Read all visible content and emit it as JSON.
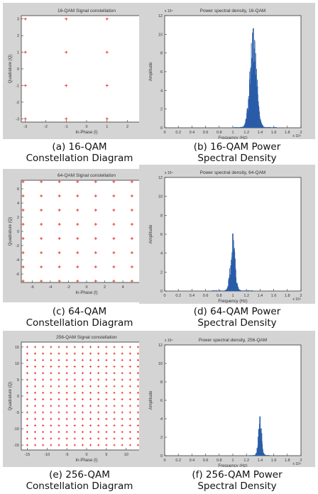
{
  "captions": {
    "a": [
      "(a) 16-QAM",
      "Constellation Diagram"
    ],
    "b": [
      "(b) 16-QAM Power",
      "Spectral Density"
    ],
    "c": [
      "(c) 64-QAM",
      "Constellation Diagram"
    ],
    "d": [
      "(d) 64-QAM Power",
      "Spectral Density"
    ],
    "e": [
      "(e) 256-QAM",
      "Constellation Diagram"
    ],
    "f": [
      "(f) 256-QAM Power",
      "Spectral Density"
    ]
  },
  "chart_data": [
    {
      "id": "a",
      "type": "scatter",
      "title": "16-QAM Signal constellation",
      "xlabel": "In-Phase (I)",
      "ylabel": "Quadrature (Q)",
      "xlim": [
        -3.2,
        3.2
      ],
      "ylim": [
        -3.2,
        3.2
      ],
      "xticks": [
        -3,
        -2,
        -1,
        0,
        1,
        2,
        3
      ],
      "yticks": [
        -3,
        -2,
        -1,
        0,
        1,
        2,
        3
      ],
      "levels": [
        -3,
        -1,
        1,
        3
      ],
      "marker_color": "#e8322a"
    },
    {
      "id": "b",
      "type": "bar",
      "title": "Power spectral density, 16-QAM",
      "xlabel": "Frequency (Hz)",
      "ylabel": "Amplitude",
      "x_multiplier": "x 10⁴",
      "y_multiplier": "x 10⁴",
      "xlim": [
        0,
        2
      ],
      "ylim": [
        0,
        12
      ],
      "xticks": [
        0,
        0.2,
        0.4,
        0.6,
        0.8,
        1,
        1.2,
        1.4,
        1.6,
        1.8,
        2
      ],
      "yticks": [
        0,
        2,
        4,
        6,
        8,
        10,
        12
      ],
      "center": 1.3,
      "peak": 10.6,
      "width": 0.05,
      "noise_range": [
        1.0,
        1.65
      ],
      "bar_color": "#2a5da8"
    },
    {
      "id": "c",
      "type": "scatter",
      "title": "64-QAM Signal constellation",
      "xlabel": "In-Phase (I)",
      "ylabel": "Quadrature (Q)",
      "xlim": [
        -7.2,
        7.2
      ],
      "ylim": [
        -7.2,
        7.2
      ],
      "xticks": [
        -6,
        -4,
        -2,
        0,
        2,
        4,
        6
      ],
      "yticks": [
        -6,
        -4,
        -2,
        0,
        2,
        4,
        6
      ],
      "levels": [
        -7,
        -5,
        -3,
        -1,
        1,
        3,
        5,
        7
      ],
      "marker_color": "#e8322a"
    },
    {
      "id": "d",
      "type": "bar",
      "title": "Power spectral density, 64-QAM",
      "xlabel": "Frequency (Hz)",
      "ylabel": "Amplitude",
      "x_multiplier": "x 10⁴",
      "y_multiplier": "x 10⁴",
      "xlim": [
        0,
        2
      ],
      "ylim": [
        0,
        12
      ],
      "xticks": [
        0,
        0.2,
        0.4,
        0.6,
        0.8,
        1,
        1.2,
        1.4,
        1.6,
        1.8,
        2
      ],
      "yticks": [
        0,
        2,
        4,
        6,
        8,
        10,
        12
      ],
      "center": 1.0,
      "peak": 6.0,
      "width": 0.035,
      "noise_range": [
        0.7,
        1.3
      ],
      "bar_color": "#2a5da8"
    },
    {
      "id": "e",
      "type": "scatter",
      "title": "256-QAM Signal constellation",
      "xlabel": "In-Phase (I)",
      "ylabel": "Quadrature (Q)",
      "xlim": [
        -16.5,
        16.5
      ],
      "ylim": [
        -16.5,
        16.5
      ],
      "xticks": [
        -15,
        -10,
        -5,
        0,
        5,
        10,
        15
      ],
      "yticks": [
        -15,
        -10,
        -5,
        0,
        5,
        10,
        15
      ],
      "levels": [
        -15,
        -13,
        -11,
        -9,
        -7,
        -5,
        -3,
        -1,
        1,
        3,
        5,
        7,
        9,
        11,
        13,
        15
      ],
      "marker_color": "#e8322a"
    },
    {
      "id": "f",
      "type": "bar",
      "title": "Power spectral density, 256-QAM",
      "xlabel": "Frequency (Hz)",
      "ylabel": "Amplitude",
      "x_multiplier": "x 10⁴",
      "y_multiplier": "x 10⁴",
      "xlim": [
        0,
        2
      ],
      "ylim": [
        0,
        12
      ],
      "xticks": [
        0,
        0.2,
        0.4,
        0.6,
        0.8,
        1,
        1.2,
        1.4,
        1.6,
        1.8,
        2
      ],
      "yticks": [
        0,
        2,
        4,
        6,
        8,
        10,
        12
      ],
      "center": 1.4,
      "peak": 4.2,
      "width": 0.025,
      "noise_range": [
        1.25,
        1.55
      ],
      "bar_color": "#2a5da8"
    }
  ]
}
